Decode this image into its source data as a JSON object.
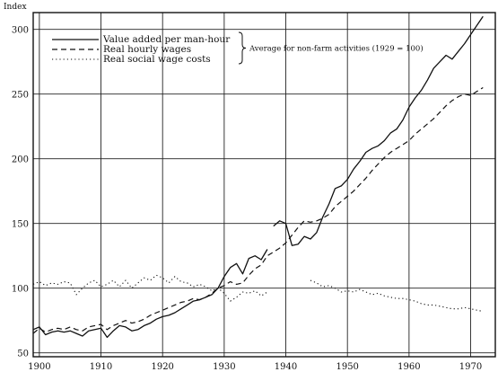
{
  "chart_data": {
    "type": "line",
    "ylabel": "Index",
    "xlim": [
      1899,
      1974
    ],
    "ylim": [
      47,
      313
    ],
    "x_ticks": [
      1900,
      1910,
      1920,
      1930,
      1940,
      1950,
      1960,
      1970
    ],
    "y_ticks": [
      50,
      100,
      150,
      200,
      250,
      300
    ],
    "grid": true,
    "legend": {
      "placement": "top-left",
      "note": "Average for non-farm activities (1929 = 100)"
    },
    "series": [
      {
        "name": "Value added per man-hour",
        "style": "solid",
        "segments": [
          [
            [
              1899,
              68
            ],
            [
              1900,
              70
            ],
            [
              1901,
              64
            ],
            [
              1902,
              66
            ],
            [
              1903,
              67
            ],
            [
              1904,
              66
            ],
            [
              1905,
              67
            ],
            [
              1906,
              65
            ],
            [
              1907,
              63
            ],
            [
              1908,
              67
            ],
            [
              1909,
              68
            ],
            [
              1910,
              69
            ],
            [
              1911,
              62
            ],
            [
              1912,
              67
            ],
            [
              1913,
              71
            ],
            [
              1914,
              70
            ],
            [
              1915,
              67
            ],
            [
              1916,
              68
            ],
            [
              1917,
              71
            ],
            [
              1918,
              73
            ],
            [
              1919,
              76
            ],
            [
              1920,
              78
            ],
            [
              1921,
              79
            ],
            [
              1922,
              81
            ],
            [
              1923,
              84
            ],
            [
              1924,
              87
            ],
            [
              1925,
              90
            ],
            [
              1926,
              91
            ],
            [
              1927,
              93
            ],
            [
              1928,
              95
            ],
            [
              1929,
              100
            ],
            [
              1930,
              109
            ],
            [
              1931,
              116
            ],
            [
              1932,
              119
            ],
            [
              1933,
              111
            ],
            [
              1934,
              123
            ],
            [
              1935,
              125
            ],
            [
              1936,
              122
            ],
            [
              1937,
              130
            ]
          ],
          [
            [
              1938,
              148
            ],
            [
              1939,
              152
            ],
            [
              1940,
              150
            ],
            [
              1941,
              133
            ],
            [
              1942,
              134
            ],
            [
              1943,
              140
            ],
            [
              1944,
              138
            ],
            [
              1945,
              143
            ],
            [
              1946,
              155
            ],
            [
              1947,
              165
            ],
            [
              1948,
              177
            ],
            [
              1949,
              179
            ],
            [
              1950,
              184
            ],
            [
              1951,
              192
            ],
            [
              1952,
              198
            ],
            [
              1953,
              205
            ],
            [
              1954,
              208
            ],
            [
              1955,
              210
            ],
            [
              1956,
              214
            ],
            [
              1957,
              220
            ],
            [
              1958,
              223
            ],
            [
              1959,
              230
            ],
            [
              1960,
              240
            ],
            [
              1961,
              247
            ],
            [
              1962,
              253
            ],
            [
              1963,
              261
            ],
            [
              1964,
              270
            ],
            [
              1965,
              275
            ],
            [
              1966,
              280
            ],
            [
              1967,
              277
            ],
            [
              1968,
              283
            ],
            [
              1969,
              289
            ],
            [
              1970,
              296
            ],
            [
              1971,
              303
            ],
            [
              1972,
              310
            ]
          ]
        ]
      },
      {
        "name": "Real hourly wages",
        "style": "dashed",
        "segments": [
          [
            [
              1899,
              65
            ],
            [
              1900,
              69
            ],
            [
              1901,
              66
            ],
            [
              1902,
              68
            ],
            [
              1903,
              69
            ],
            [
              1904,
              68
            ],
            [
              1905,
              70
            ],
            [
              1906,
              68
            ],
            [
              1907,
              67
            ],
            [
              1908,
              70
            ],
            [
              1909,
              71
            ],
            [
              1910,
              72
            ],
            [
              1911,
              68
            ],
            [
              1912,
              71
            ],
            [
              1913,
              73
            ],
            [
              1914,
              75
            ],
            [
              1915,
              73
            ],
            [
              1916,
              74
            ],
            [
              1917,
              76
            ],
            [
              1918,
              79
            ],
            [
              1919,
              81
            ],
            [
              1920,
              83
            ],
            [
              1921,
              85
            ],
            [
              1922,
              87
            ],
            [
              1923,
              89
            ],
            [
              1924,
              90
            ],
            [
              1925,
              92
            ],
            [
              1926,
              91
            ],
            [
              1927,
              93
            ],
            [
              1928,
              96
            ],
            [
              1929,
              100
            ],
            [
              1930,
              102
            ],
            [
              1931,
              105
            ],
            [
              1932,
              103
            ],
            [
              1933,
              104
            ],
            [
              1934,
              110
            ],
            [
              1935,
              115
            ],
            [
              1936,
              118
            ],
            [
              1937,
              125
            ],
            [
              1938,
              128
            ],
            [
              1939,
              131
            ],
            [
              1940,
              135
            ],
            [
              1941,
              141
            ],
            [
              1942,
              147
            ],
            [
              1943,
              152
            ],
            [
              1944,
              151
            ],
            [
              1945,
              152
            ],
            [
              1946,
              154
            ],
            [
              1947,
              157
            ],
            [
              1948,
              163
            ],
            [
              1949,
              167
            ],
            [
              1950,
              171
            ],
            [
              1951,
              175
            ],
            [
              1952,
              180
            ],
            [
              1953,
              185
            ],
            [
              1954,
              191
            ],
            [
              1955,
              196
            ],
            [
              1956,
              201
            ],
            [
              1957,
              205
            ],
            [
              1958,
              208
            ],
            [
              1959,
              211
            ],
            [
              1960,
              214
            ],
            [
              1961,
              219
            ],
            [
              1962,
              223
            ],
            [
              1963,
              227
            ],
            [
              1964,
              231
            ],
            [
              1965,
              236
            ],
            [
              1966,
              241
            ],
            [
              1967,
              245
            ],
            [
              1968,
              248
            ],
            [
              1969,
              250
            ],
            [
              1970,
              249
            ],
            [
              1971,
              252
            ],
            [
              1972,
              255
            ]
          ]
        ]
      },
      {
        "name": "Real social wage costs",
        "style": "dotted",
        "segments": [
          [
            [
              1899,
              103
            ],
            [
              1900,
              105
            ],
            [
              1901,
              102
            ],
            [
              1902,
              104
            ],
            [
              1903,
              103
            ],
            [
              1904,
              105
            ],
            [
              1905,
              104
            ],
            [
              1906,
              95
            ],
            [
              1907,
              100
            ],
            [
              1908,
              104
            ],
            [
              1909,
              106
            ],
            [
              1910,
              101
            ],
            [
              1911,
              103
            ],
            [
              1912,
              106
            ],
            [
              1913,
              101
            ],
            [
              1914,
              106
            ],
            [
              1915,
              100
            ],
            [
              1916,
              104
            ],
            [
              1917,
              108
            ],
            [
              1918,
              106
            ],
            [
              1919,
              110
            ],
            [
              1920,
              108
            ],
            [
              1921,
              104
            ],
            [
              1922,
              109
            ],
            [
              1923,
              105
            ],
            [
              1924,
              104
            ],
            [
              1925,
              101
            ],
            [
              1926,
              103
            ],
            [
              1927,
              101
            ],
            [
              1928,
              98
            ],
            [
              1929,
              100
            ],
            [
              1930,
              96
            ],
            [
              1931,
              90
            ],
            [
              1932,
              93
            ],
            [
              1933,
              97
            ],
            [
              1934,
              96
            ],
            [
              1935,
              98
            ],
            [
              1936,
              94
            ],
            [
              1937,
              97
            ]
          ],
          [
            [
              1944,
              106
            ],
            [
              1945,
              104
            ],
            [
              1946,
              101
            ],
            [
              1947,
              102
            ],
            [
              1948,
              100
            ],
            [
              1949,
              97
            ],
            [
              1950,
              98
            ],
            [
              1951,
              97
            ],
            [
              1952,
              99
            ],
            [
              1953,
              97
            ],
            [
              1954,
              95
            ],
            [
              1955,
              96
            ],
            [
              1956,
              94
            ],
            [
              1957,
              93
            ],
            [
              1958,
              92
            ],
            [
              1959,
              92
            ],
            [
              1960,
              91
            ],
            [
              1961,
              90
            ],
            [
              1962,
              88
            ],
            [
              1963,
              87
            ],
            [
              1964,
              87
            ],
            [
              1965,
              86
            ],
            [
              1966,
              85
            ],
            [
              1967,
              84
            ],
            [
              1968,
              84
            ],
            [
              1969,
              85
            ],
            [
              1970,
              84
            ],
            [
              1971,
              83
            ],
            [
              1972,
              82
            ]
          ]
        ]
      }
    ]
  }
}
